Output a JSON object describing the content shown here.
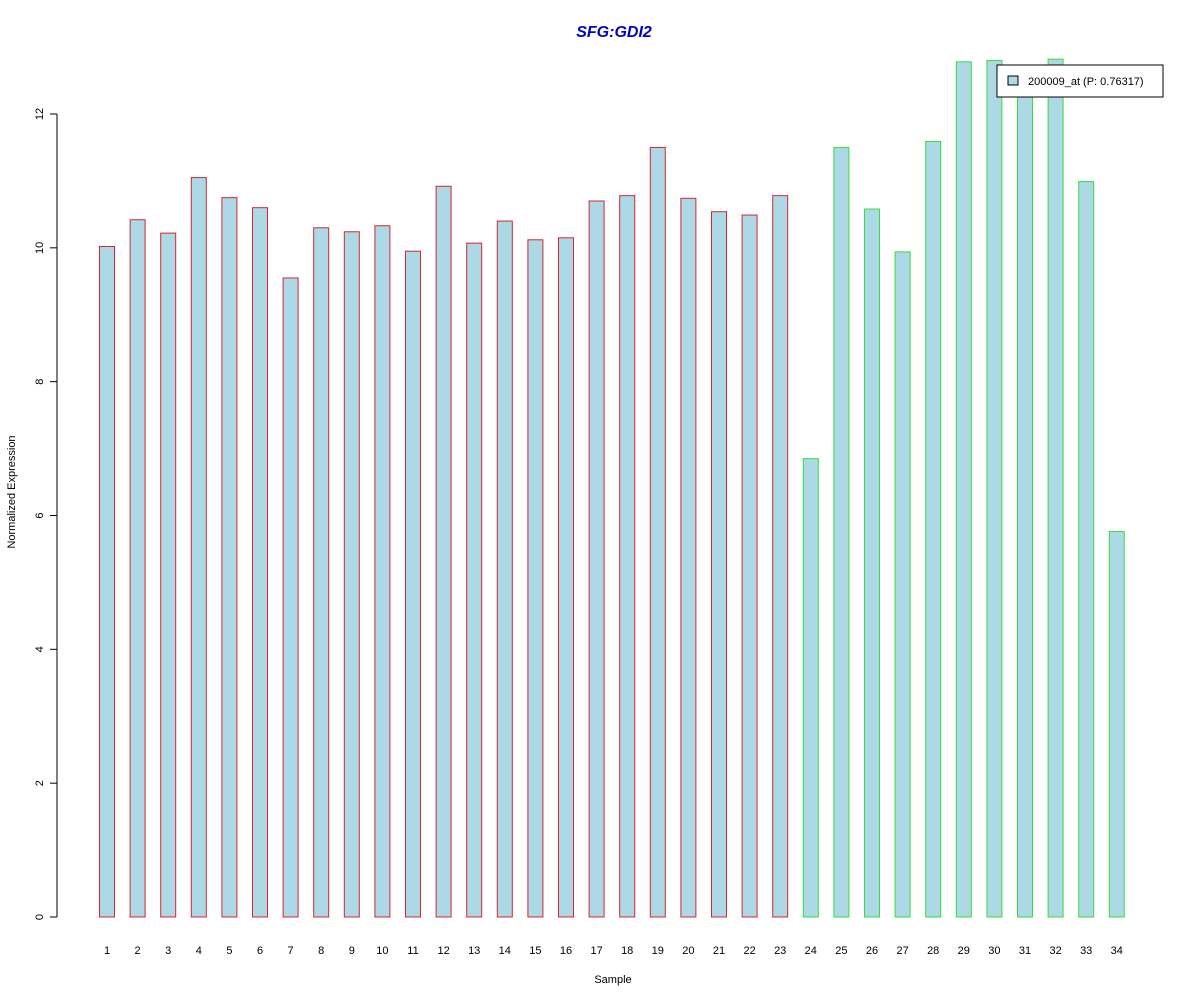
{
  "chart_data": {
    "type": "bar",
    "title": "SFG:GDI2",
    "xlabel": "Sample",
    "ylabel": "Normalized Expression",
    "categories": [
      "1",
      "2",
      "3",
      "4",
      "5",
      "6",
      "7",
      "8",
      "9",
      "10",
      "11",
      "12",
      "13",
      "14",
      "15",
      "16",
      "17",
      "18",
      "19",
      "20",
      "21",
      "22",
      "23",
      "24",
      "25",
      "26",
      "27",
      "28",
      "29",
      "30",
      "31",
      "32",
      "33",
      "34"
    ],
    "series": [
      {
        "name": "200009_at (P: 0.76317)",
        "values": [
          10.02,
          10.42,
          10.22,
          11.05,
          10.75,
          10.6,
          9.55,
          10.3,
          10.24,
          10.33,
          9.95,
          10.92,
          10.07,
          10.4,
          10.12,
          10.15,
          10.7,
          10.78,
          11.5,
          10.74,
          10.54,
          10.49,
          10.78,
          6.85,
          11.5,
          10.58,
          9.94,
          11.59,
          12.78,
          12.8,
          12.4,
          12.82,
          10.99,
          5.76
        ]
      }
    ],
    "groups": [
      {
        "samples": [
          1,
          23
        ],
        "border_color": "#d9262e"
      },
      {
        "samples": [
          24,
          34
        ],
        "border_color": "#33e03a"
      }
    ],
    "ylim": [
      0,
      12
    ],
    "yticks": [
      0,
      2,
      4,
      6,
      8,
      10,
      12
    ],
    "legend": {
      "label": "200009_at (P: 0.76317)",
      "position": "top-right"
    },
    "grid": false,
    "colors": {
      "bar_fill": "#add8e6",
      "title": "#0000cc",
      "axis": "#000000"
    }
  }
}
